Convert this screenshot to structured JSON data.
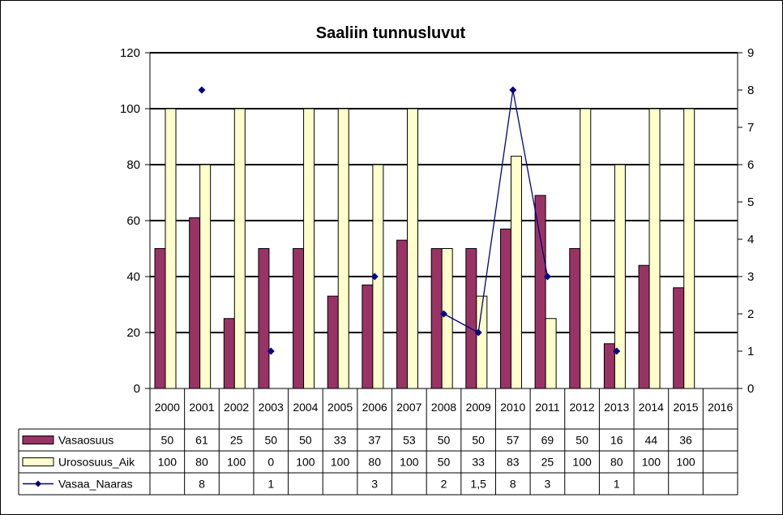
{
  "chart_data": {
    "type": "bar",
    "title": "Saaliin tunnusluvut",
    "categories": [
      "2000",
      "2001",
      "2002",
      "2003",
      "2004",
      "2005",
      "2006",
      "2007",
      "2008",
      "2009",
      "2010",
      "2011",
      "2012",
      "2013",
      "2014",
      "2015",
      "2016"
    ],
    "ylim": [
      0,
      120
    ],
    "yticks": [
      "0",
      "20",
      "40",
      "60",
      "80",
      "100",
      "120"
    ],
    "y2lim": [
      0,
      9
    ],
    "y2ticks": [
      "0",
      "1",
      "2",
      "3",
      "4",
      "5",
      "6",
      "7",
      "8",
      "9"
    ],
    "grid": true,
    "legend": "data-table",
    "series": [
      {
        "name": "Vasaosuus",
        "type": "bar",
        "axis": "left",
        "color": "#993366",
        "values": [
          50,
          61,
          25,
          50,
          50,
          33,
          37,
          53,
          50,
          50,
          57,
          69,
          50,
          16,
          44,
          36,
          null
        ],
        "labels": [
          "50",
          "61",
          "25",
          "50",
          "50",
          "33",
          "37",
          "53",
          "50",
          "50",
          "57",
          "69",
          "50",
          "16",
          "44",
          "36",
          ""
        ]
      },
      {
        "name": "Urososuus_Aik",
        "type": "bar",
        "axis": "left",
        "color": "#ffffcc",
        "values": [
          100,
          80,
          100,
          0,
          100,
          100,
          80,
          100,
          50,
          33,
          83,
          25,
          100,
          80,
          100,
          100,
          null
        ],
        "labels": [
          "100",
          "80",
          "100",
          "0",
          "100",
          "100",
          "80",
          "100",
          "50",
          "33",
          "83",
          "25",
          "100",
          "80",
          "100",
          "100",
          ""
        ]
      },
      {
        "name": "Vasaa_Naaras",
        "type": "line",
        "axis": "right",
        "color": "#000080",
        "values": [
          null,
          8,
          null,
          1,
          null,
          null,
          3,
          null,
          2,
          1.5,
          8,
          3,
          null,
          1,
          null,
          null,
          null
        ],
        "labels": [
          "",
          "8",
          "",
          "1",
          "",
          "",
          "3",
          "",
          "2",
          "1,5",
          "8",
          "3",
          "",
          "1",
          "",
          "",
          ""
        ]
      }
    ]
  }
}
